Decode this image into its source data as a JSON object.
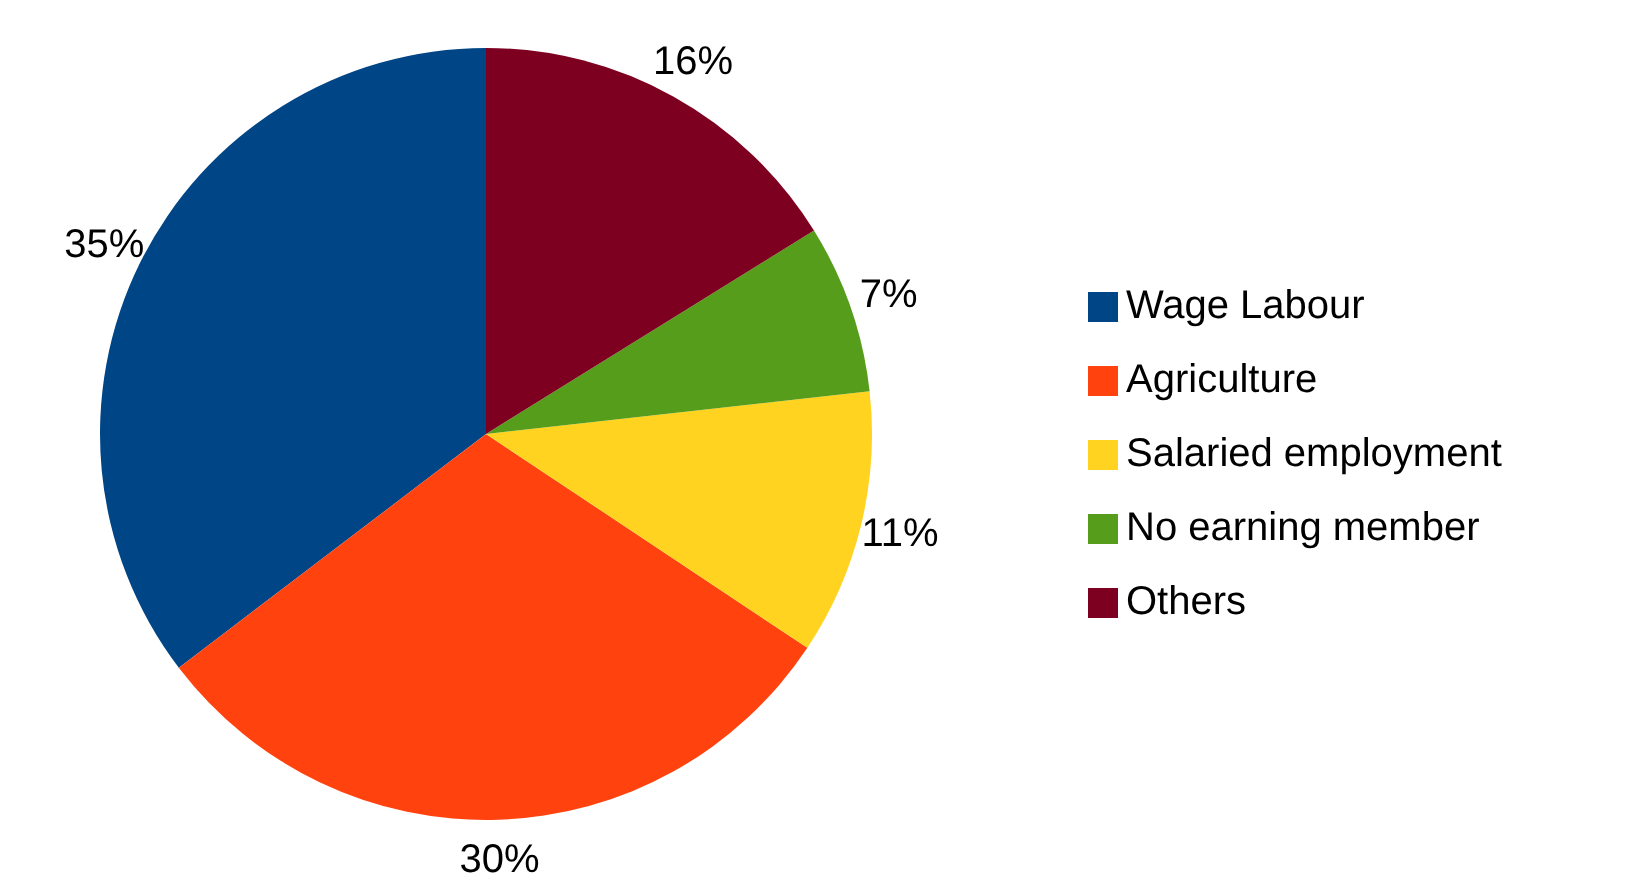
{
  "chart_data": {
    "type": "pie",
    "categories": [
      "Wage Labour",
      "Agriculture",
      "Salaried employment",
      "No earning member",
      "Others"
    ],
    "values": [
      35,
      30,
      11,
      7,
      16
    ],
    "value_labels": [
      "35%",
      "30%",
      "11%",
      "7%",
      "16%"
    ],
    "colors": [
      "#004586",
      "#ff420e",
      "#ffd320",
      "#579d1c",
      "#7e0021"
    ],
    "legend": "right"
  }
}
